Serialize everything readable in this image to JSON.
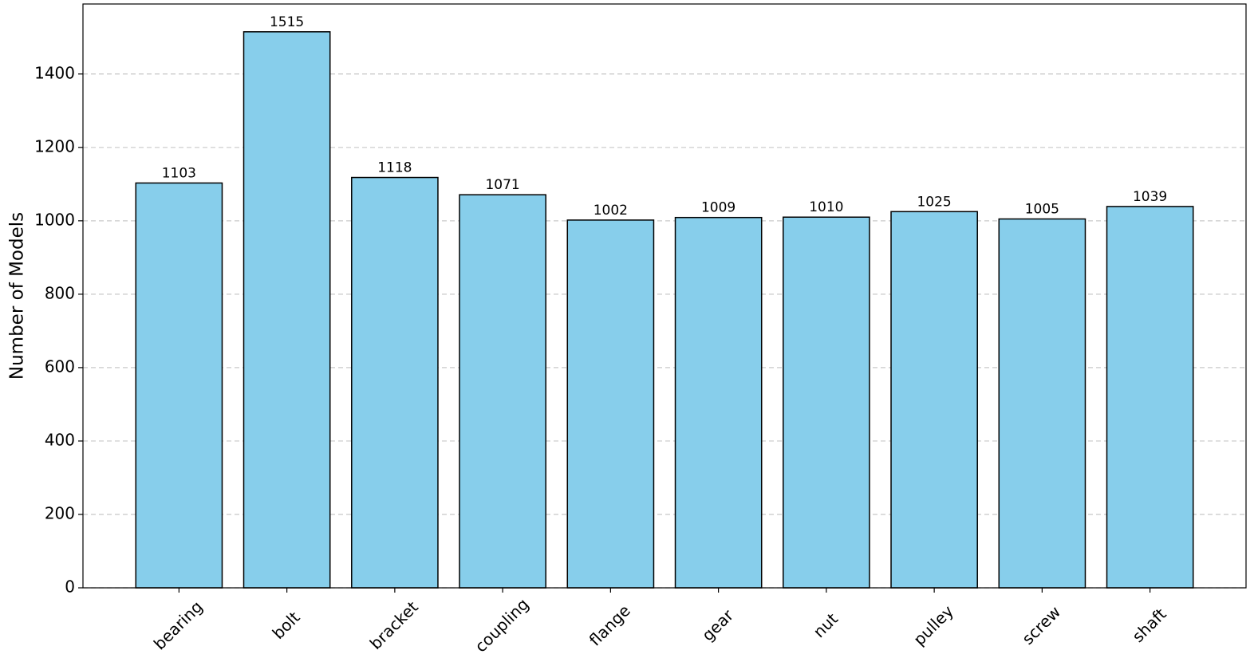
{
  "chart_data": {
    "type": "bar",
    "ylabel": "Number of Models",
    "categories": [
      "bearing",
      "bolt",
      "bracket",
      "coupling",
      "flange",
      "gear",
      "nut",
      "pulley",
      "screw",
      "shaft"
    ],
    "values": [
      1103,
      1515,
      1118,
      1071,
      1002,
      1009,
      1010,
      1025,
      1005,
      1039
    ],
    "color": "#87ceeb",
    "edgecolor": "#000000",
    "ylim": [
      0,
      1590.75
    ],
    "yticks": [
      0,
      200,
      400,
      600,
      800,
      1000,
      1200,
      1400
    ],
    "grid": true
  }
}
